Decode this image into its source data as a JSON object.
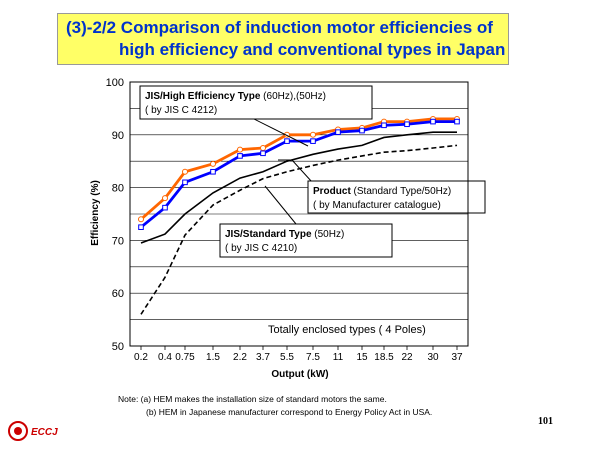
{
  "title": {
    "line1": "(3)-2/2  Comparison of induction motor efficiencies of",
    "line2": "high efficiency and conventional types in Japan"
  },
  "chart_data": {
    "type": "line",
    "categories": [
      "0.2",
      "0.4",
      "0.75",
      "1.5",
      "2.2",
      "3.7",
      "5.5",
      "7.5",
      "11",
      "15",
      "18.5",
      "22",
      "30",
      "37"
    ],
    "xlabel": "Output (kW)",
    "ylabel": "Efficiency (%)",
    "ylim": [
      50,
      100
    ],
    "yticks": [
      50,
      60,
      70,
      80,
      90,
      100
    ],
    "grid": true,
    "series": [
      {
        "id": "jis_high_60",
        "color": "#ff6600",
        "style": "solid",
        "marker": "open-circle",
        "values": [
          74,
          78,
          83,
          84.5,
          87.2,
          87.5,
          90,
          90,
          91,
          91.3,
          92.5,
          92.5,
          93,
          93
        ]
      },
      {
        "id": "jis_high_50",
        "color": "#0000ff",
        "style": "solid",
        "marker": "open-square",
        "values": [
          72.5,
          76.2,
          81,
          83,
          86,
          86.5,
          88.8,
          88.8,
          90.5,
          90.8,
          91.8,
          92,
          92.5,
          92.5
        ]
      },
      {
        "id": "product_50",
        "color": "#000000",
        "style": "solid",
        "marker": "none",
        "values": [
          69.5,
          71.2,
          75,
          79,
          81.8,
          83,
          85,
          86.3,
          87.3,
          88,
          89.5,
          90,
          90.5,
          90.5
        ]
      },
      {
        "id": "jis_standard_50",
        "color": "#000000",
        "style": "dashed",
        "marker": "none",
        "values": [
          56,
          63,
          71,
          76.7,
          79.5,
          81.7,
          83,
          84.2,
          85.2,
          86,
          86.7,
          87,
          87.5,
          88
        ]
      }
    ],
    "annotations": {
      "jis_high": {
        "bold": "JIS/High Efficiency Type",
        "normal": " (60Hz),(50Hz)",
        "line2": "( by JIS C 4212)"
      },
      "product": {
        "bold": "Product",
        "normal": " (Standard Type/50Hz)",
        "line2": "( by Manufacturer catalogue)"
      },
      "jis_standard": {
        "bold": "JIS/Standard Type",
        "normal": " (50Hz)",
        "line2": "( by JIS C 4210)"
      },
      "enclosure": "Totally enclosed types ( 4 Poles)"
    }
  },
  "notes": {
    "line1": "Note: (a) HEM makes the installation size of standard motors the same.",
    "line2": "(b) HEM in Japanese manufacturer correspond to Energy Policy Act in USA."
  },
  "page_number": "101",
  "logo": {
    "text": "ECCJ",
    "color": "#cc0000"
  }
}
